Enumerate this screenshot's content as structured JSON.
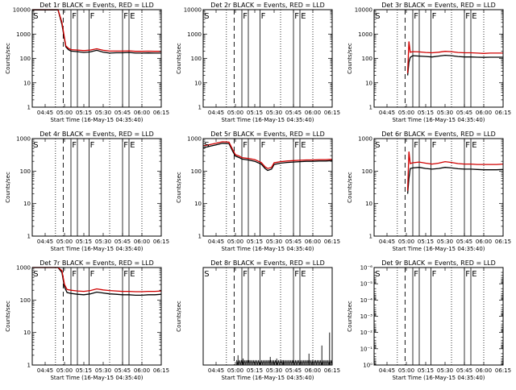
{
  "figure": {
    "xticks": [
      "04:45",
      "05:00",
      "05:15",
      "05:30",
      "05:45",
      "06:00",
      "06:15"
    ],
    "xlabel": "Start Time (16-May-15 04:35:40)",
    "ylabel": "Counts/sec",
    "colors": {
      "events": "#000000",
      "lld": "#d00000",
      "axis": "#000000"
    }
  },
  "chart_data": [
    {
      "type": "line",
      "title": "Det 1r BLACK = Events, RED = LLD",
      "yscale": "log",
      "ylim": [
        1,
        10000
      ],
      "yticks": [
        "1",
        "10",
        "100",
        "1000",
        "10000"
      ],
      "xrange_min": [
        0,
        100
      ],
      "xticks_min": [
        10,
        25,
        40,
        55,
        70,
        85,
        100
      ],
      "dotted_min": [
        18,
        60,
        85
      ],
      "dashed_min": [
        24
      ],
      "solid_min": [
        30,
        35,
        44,
        70,
        75
      ],
      "markers": [
        {
          "label": "S",
          "t": 0.8,
          "y": 9000
        },
        {
          "label": "F",
          "t": 30.8,
          "y": 9000
        },
        {
          "label": "F",
          "t": 44.8,
          "y": 9000
        },
        {
          "label": "F",
          "t": 70.8,
          "y": 9000
        },
        {
          "label": "E",
          "t": 75.8,
          "y": 9000
        }
      ],
      "series": [
        {
          "name": "Events",
          "color": "#000000",
          "t": [
            0,
            10,
            20,
            23,
            26,
            28,
            30,
            35,
            40,
            45,
            50,
            55,
            60,
            65,
            70,
            75,
            80,
            85,
            90,
            95,
            100
          ],
          "v": [
            9800,
            9800,
            9800,
            2500,
            300,
            230,
            200,
            190,
            175,
            185,
            215,
            180,
            165,
            170,
            170,
            175,
            165,
            165,
            168,
            165,
            165
          ]
        },
        {
          "name": "LLD",
          "color": "#d00000",
          "t": [
            0,
            10,
            20,
            23,
            26,
            28,
            30,
            35,
            40,
            45,
            50,
            55,
            60,
            65,
            70,
            75,
            80,
            85,
            90,
            95,
            100
          ],
          "v": [
            10000,
            10000,
            10000,
            3000,
            330,
            260,
            230,
            220,
            210,
            220,
            250,
            215,
            200,
            200,
            200,
            205,
            195,
            195,
            198,
            195,
            195
          ]
        }
      ]
    },
    {
      "type": "line",
      "title": "Det 2r BLACK = Events, RED = LLD",
      "yscale": "log",
      "ylim": [
        1,
        10000
      ],
      "yticks": [
        "1",
        "10",
        "100",
        "1000",
        "10000"
      ],
      "xrange_min": [
        0,
        100
      ],
      "xticks_min": [
        10,
        25,
        40,
        55,
        70,
        85,
        100
      ],
      "dotted_min": [
        18,
        60,
        85
      ],
      "dashed_min": [
        24
      ],
      "solid_min": [
        30,
        35,
        44,
        70,
        75
      ],
      "markers": [
        {
          "label": "S",
          "t": 0.8,
          "y": 9000
        },
        {
          "label": "F",
          "t": 30.8,
          "y": 9000
        },
        {
          "label": "F",
          "t": 44.8,
          "y": 9000
        },
        {
          "label": "F",
          "t": 70.8,
          "y": 9000
        },
        {
          "label": "E",
          "t": 75.8,
          "y": 9000
        }
      ],
      "series": []
    },
    {
      "type": "line",
      "title": "Det 3r BLACK = Events, RED = LLD",
      "yscale": "log",
      "ylim": [
        1,
        10000
      ],
      "yticks": [
        "1",
        "10",
        "100",
        "1000",
        "10000"
      ],
      "xrange_min": [
        0,
        100
      ],
      "xticks_min": [
        10,
        25,
        40,
        55,
        70,
        85,
        100
      ],
      "dotted_min": [
        18,
        60,
        85
      ],
      "dashed_min": [
        24
      ],
      "solid_min": [
        30,
        35,
        44,
        70,
        75
      ],
      "markers": [
        {
          "label": "S",
          "t": 0.8,
          "y": 9000
        },
        {
          "label": "F",
          "t": 30.8,
          "y": 9000
        },
        {
          "label": "F",
          "t": 44.8,
          "y": 9000
        },
        {
          "label": "F",
          "t": 70.8,
          "y": 9000
        },
        {
          "label": "E",
          "t": 75.8,
          "y": 9000
        }
      ],
      "series": [
        {
          "name": "Events",
          "color": "#000000",
          "t": [
            26,
            27,
            28,
            30,
            35,
            40,
            45,
            50,
            55,
            60,
            65,
            70,
            75,
            80,
            85,
            90,
            95,
            100
          ],
          "v": [
            20,
            70,
            110,
            130,
            125,
            120,
            115,
            125,
            135,
            130,
            120,
            115,
            115,
            112,
            110,
            112,
            112,
            112
          ]
        },
        {
          "name": "LLD",
          "color": "#d00000",
          "t": [
            26,
            27,
            28,
            30,
            35,
            40,
            45,
            50,
            55,
            60,
            65,
            70,
            75,
            80,
            85,
            90,
            95,
            100
          ],
          "v": [
            25,
            500,
            180,
            190,
            185,
            175,
            170,
            180,
            195,
            190,
            175,
            170,
            170,
            165,
            160,
            165,
            165,
            165
          ]
        }
      ]
    },
    {
      "type": "line",
      "title": "Det 4r BLACK = Events, RED = LLD",
      "yscale": "log",
      "ylim": [
        1,
        1000
      ],
      "yticks": [
        "1",
        "10",
        "100",
        "1000"
      ],
      "xrange_min": [
        0,
        100
      ],
      "xticks_min": [
        10,
        25,
        40,
        55,
        70,
        85,
        100
      ],
      "dotted_min": [
        18,
        60,
        85
      ],
      "dashed_min": [
        24
      ],
      "solid_min": [
        30,
        35,
        44,
        70,
        75
      ],
      "markers": [
        {
          "label": "S",
          "t": 0.8,
          "y": 900
        },
        {
          "label": "F",
          "t": 30.8,
          "y": 900
        },
        {
          "label": "F",
          "t": 44.8,
          "y": 900
        },
        {
          "label": "F",
          "t": 70.8,
          "y": 900
        },
        {
          "label": "E",
          "t": 75.8,
          "y": 900
        }
      ],
      "series": []
    },
    {
      "type": "line",
      "title": "Det 5r BLACK = Events, RED = LLD",
      "yscale": "log",
      "ylim": [
        1,
        1000
      ],
      "yticks": [
        "1",
        "10",
        "100",
        "1000"
      ],
      "xrange_min": [
        0,
        100
      ],
      "xticks_min": [
        10,
        25,
        40,
        55,
        70,
        85,
        100
      ],
      "dotted_min": [
        18,
        60,
        85
      ],
      "dashed_min": [
        24
      ],
      "solid_min": [
        30,
        35,
        44,
        70,
        75
      ],
      "markers": [
        {
          "label": "S",
          "t": 0.8,
          "y": 900
        },
        {
          "label": "F",
          "t": 30.8,
          "y": 900
        },
        {
          "label": "F",
          "t": 44.8,
          "y": 900
        },
        {
          "label": "F",
          "t": 70.8,
          "y": 900
        },
        {
          "label": "E",
          "t": 75.8,
          "y": 900
        }
      ],
      "series": [
        {
          "name": "Events",
          "color": "#000000",
          "t": [
            0,
            5,
            10,
            15,
            20,
            23,
            25,
            28,
            30,
            35,
            40,
            45,
            48,
            50,
            53,
            55,
            60,
            65,
            70,
            75,
            80,
            85,
            90,
            95,
            100
          ],
          "v": [
            520,
            580,
            640,
            720,
            700,
            400,
            290,
            260,
            235,
            220,
            200,
            165,
            120,
            105,
            115,
            160,
            175,
            185,
            190,
            195,
            200,
            200,
            205,
            205,
            210
          ]
        },
        {
          "name": "LLD",
          "color": "#d00000",
          "t": [
            0,
            5,
            10,
            15,
            20,
            23,
            25,
            28,
            30,
            35,
            40,
            45,
            48,
            50,
            53,
            55,
            60,
            65,
            70,
            75,
            80,
            85,
            90,
            95,
            100
          ],
          "v": [
            600,
            650,
            720,
            800,
            780,
            450,
            320,
            290,
            260,
            245,
            225,
            185,
            135,
            120,
            130,
            180,
            195,
            205,
            210,
            215,
            220,
            220,
            225,
            225,
            230
          ]
        }
      ]
    },
    {
      "type": "line",
      "title": "Det 6r BLACK = Events, RED = LLD",
      "yscale": "log",
      "ylim": [
        1,
        1000
      ],
      "yticks": [
        "1",
        "10",
        "100",
        "1000"
      ],
      "xrange_min": [
        0,
        100
      ],
      "xticks_min": [
        10,
        25,
        40,
        55,
        70,
        85,
        100
      ],
      "dotted_min": [
        18,
        60,
        85
      ],
      "dashed_min": [
        24
      ],
      "solid_min": [
        30,
        35,
        44,
        70,
        75
      ],
      "markers": [
        {
          "label": "S",
          "t": 0.8,
          "y": 900
        },
        {
          "label": "F",
          "t": 30.8,
          "y": 900
        },
        {
          "label": "F",
          "t": 44.8,
          "y": 900
        },
        {
          "label": "F",
          "t": 70.8,
          "y": 900
        },
        {
          "label": "E",
          "t": 75.8,
          "y": 900
        }
      ],
      "series": [
        {
          "name": "Events",
          "color": "#000000",
          "t": [
            26,
            27,
            28,
            30,
            35,
            40,
            45,
            50,
            55,
            60,
            65,
            70,
            75,
            80,
            85,
            90,
            95,
            100
          ],
          "v": [
            20,
            60,
            120,
            125,
            130,
            120,
            115,
            120,
            130,
            125,
            118,
            115,
            115,
            112,
            110,
            110,
            110,
            112
          ]
        },
        {
          "name": "LLD",
          "color": "#d00000",
          "t": [
            26,
            27,
            28,
            30,
            35,
            40,
            45,
            50,
            55,
            60,
            65,
            70,
            75,
            80,
            85,
            90,
            95,
            100
          ],
          "v": [
            25,
            400,
            170,
            180,
            190,
            175,
            165,
            175,
            195,
            185,
            170,
            165,
            165,
            160,
            160,
            160,
            160,
            165
          ]
        }
      ]
    },
    {
      "type": "line",
      "title": "Det 7r BLACK = Events, RED = LLD",
      "yscale": "log",
      "ylim": [
        1,
        1000
      ],
      "yticks": [
        "1",
        "10",
        "100",
        "1000"
      ],
      "xrange_min": [
        0,
        100
      ],
      "xticks_min": [
        10,
        25,
        40,
        55,
        70,
        85,
        100
      ],
      "dotted_min": [
        18,
        60,
        85
      ],
      "dashed_min": [
        24
      ],
      "solid_min": [
        30,
        35,
        44,
        70,
        75
      ],
      "markers": [
        {
          "label": "S",
          "t": 0.8,
          "y": 900
        },
        {
          "label": "F",
          "t": 30.8,
          "y": 900
        },
        {
          "label": "F",
          "t": 44.8,
          "y": 900
        },
        {
          "label": "F",
          "t": 70.8,
          "y": 900
        },
        {
          "label": "E",
          "t": 75.8,
          "y": 900
        }
      ],
      "series": [
        {
          "name": "Events",
          "color": "#000000",
          "t": [
            0,
            5,
            10,
            15,
            20,
            23,
            25,
            27,
            30,
            35,
            40,
            45,
            50,
            55,
            60,
            65,
            70,
            75,
            80,
            85,
            90,
            95,
            100
          ],
          "v": [
            1000,
            1000,
            1000,
            1000,
            1000,
            700,
            250,
            170,
            160,
            150,
            145,
            155,
            175,
            165,
            155,
            150,
            145,
            145,
            140,
            140,
            145,
            145,
            150
          ]
        },
        {
          "name": "LLD",
          "color": "#d00000",
          "t": [
            0,
            5,
            10,
            15,
            20,
            23,
            25,
            27,
            30,
            35,
            40,
            45,
            50,
            55,
            60,
            65,
            70,
            75,
            80,
            85,
            90,
            95,
            100
          ],
          "v": [
            1000,
            1000,
            1000,
            1000,
            1000,
            800,
            300,
            210,
            200,
            190,
            185,
            195,
            220,
            205,
            195,
            190,
            185,
            185,
            180,
            180,
            185,
            185,
            190
          ]
        }
      ]
    },
    {
      "type": "line",
      "title": "Det 8r BLACK = Events, RED = LLD",
      "yscale": "linear",
      "ylim": [
        0,
        60
      ],
      "yticks": [],
      "xrange_min": [
        0,
        100
      ],
      "xticks_min": [
        10,
        25,
        40,
        55,
        70,
        85,
        100
      ],
      "dotted_min": [
        18,
        60,
        85
      ],
      "dashed_min": [
        24
      ],
      "solid_min": [
        30,
        35,
        44,
        70,
        75
      ],
      "markers": [
        {
          "label": "S",
          "t": 0.8,
          "y": 57
        },
        {
          "label": "F",
          "t": 30.8,
          "y": 57
        },
        {
          "label": "F",
          "t": 44.8,
          "y": 57
        },
        {
          "label": "F",
          "t": 70.8,
          "y": 57
        },
        {
          "label": "E",
          "t": 75.8,
          "y": 57
        }
      ],
      "series": [
        {
          "name": "Events",
          "color": "#000000",
          "style": "spiky",
          "t": [
            26,
            100
          ],
          "base": 0,
          "level": 3,
          "spikes": [
            [
              27,
              6
            ],
            [
              31,
              4
            ],
            [
              52,
              5
            ],
            [
              57,
              4
            ],
            [
              62,
              3
            ],
            [
              82,
              7
            ],
            [
              92,
              12
            ],
            [
              98,
              20
            ]
          ]
        }
      ]
    },
    {
      "type": "line",
      "title": "Det 9r BLACK = Events, RED = LLD",
      "yscale": "log",
      "ylim": [
        1,
        1e-06
      ],
      "yticks": [
        "10⁰",
        "10⁻¹",
        "10⁻²",
        "10⁻³",
        "10⁻⁴",
        "10⁻⁵",
        "10⁻⁶"
      ],
      "xrange_min": [
        0,
        100
      ],
      "xticks_min": [
        10,
        25,
        40,
        55,
        70,
        85,
        100
      ],
      "dotted_min": [
        18,
        60,
        85
      ],
      "dashed_min": [
        24
      ],
      "solid_min": [
        30,
        35,
        44,
        70,
        75
      ],
      "markers": [
        {
          "label": "S",
          "t": 0.8,
          "y": 0.8
        },
        {
          "label": "F",
          "t": 30.8,
          "y": 0.8
        },
        {
          "label": "F",
          "t": 44.8,
          "y": 0.8
        },
        {
          "label": "F",
          "t": 70.8,
          "y": 0.8
        },
        {
          "label": "E",
          "t": 75.8,
          "y": 0.8
        }
      ],
      "series": []
    }
  ]
}
